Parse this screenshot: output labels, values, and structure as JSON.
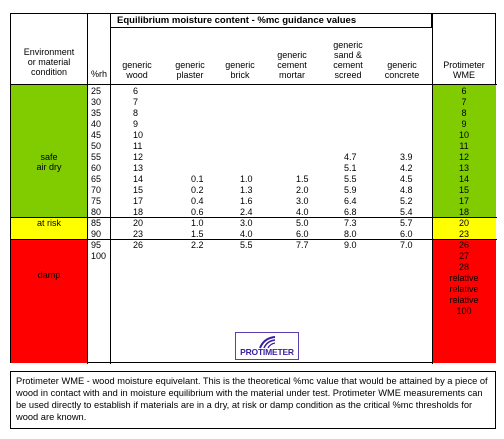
{
  "table": {
    "title": "Equilibrium moisture content - %mc guidance values",
    "headers": {
      "environment": [
        "Environment",
        "or material",
        "condition"
      ],
      "rh": "%rh",
      "wood": [
        "generic",
        "wood"
      ],
      "plaster": [
        "generic",
        "plaster"
      ],
      "brick": [
        "generic",
        "brick"
      ],
      "cement_mortar": [
        "generic",
        "cement",
        "mortar"
      ],
      "sand_cement": [
        "generic",
        "sand &",
        "cement",
        "screed"
      ],
      "concrete": [
        "generic",
        "concrete"
      ],
      "wme": [
        "Protimeter",
        "WME"
      ]
    },
    "conditions": {
      "safe": [
        "safe",
        "air dry"
      ],
      "at_risk": "at risk",
      "damp": "damp"
    },
    "colors": {
      "safe": "#80cc00",
      "at_risk": "#ffff00",
      "damp": "#ff0000"
    },
    "rh": [
      "25",
      "30",
      "35",
      "40",
      "45",
      "50",
      "55",
      "60",
      "65",
      "70",
      "75",
      "80",
      "85",
      "90",
      "95",
      "100"
    ],
    "wood": [
      "6",
      "7",
      "8",
      "9",
      "10",
      "11",
      "12",
      "13",
      "14",
      "15",
      "17",
      "18",
      "20",
      "23",
      "26",
      ""
    ],
    "plaster": [
      "",
      "",
      "",
      "",
      "",
      "",
      "",
      "",
      "0.1",
      "0.2",
      "0.4",
      "0.6",
      "1.0",
      "1.5",
      "2.2",
      ""
    ],
    "brick": [
      "",
      "",
      "",
      "",
      "",
      "",
      "",
      "",
      "1.0",
      "1.3",
      "1.6",
      "2.4",
      "3.0",
      "4.0",
      "5.5",
      ""
    ],
    "cement_mortar": [
      "",
      "",
      "",
      "",
      "",
      "",
      "",
      "",
      "1.5",
      "2.0",
      "3.0",
      "4.0",
      "5.0",
      "6.0",
      "7.7",
      ""
    ],
    "sand_cement": [
      "",
      "",
      "",
      "",
      "",
      "",
      "4.7",
      "5.1",
      "5.5",
      "5.9",
      "6.4",
      "6.8",
      "7.3",
      "8.0",
      "9.0",
      ""
    ],
    "concrete": [
      "",
      "",
      "",
      "",
      "",
      "",
      "3.9",
      "4.2",
      "4.5",
      "4.8",
      "5.2",
      "5.4",
      "5.7",
      "6.0",
      "7.0",
      ""
    ],
    "wme": [
      "6",
      "7",
      "8",
      "9",
      "10",
      "11",
      "12",
      "13",
      "14",
      "15",
      "17",
      "18",
      "20",
      "23",
      "26",
      "27",
      "28",
      "relative",
      "relative",
      "relative",
      "100"
    ]
  },
  "logo": {
    "text": "PROTIMETER",
    "icon": "protimeter-swoosh-logo"
  },
  "note": "Protimeter WME - wood moisture equivelant. This is the theoretical %mc value that would be attained by a piece of wood in contact with and in moisture equilibrium with the material under test. Protimeter WME measurements can be used directly to establish if materials are in a dry, at risk or damp condition as the critical %mc thresholds for wood are known."
}
